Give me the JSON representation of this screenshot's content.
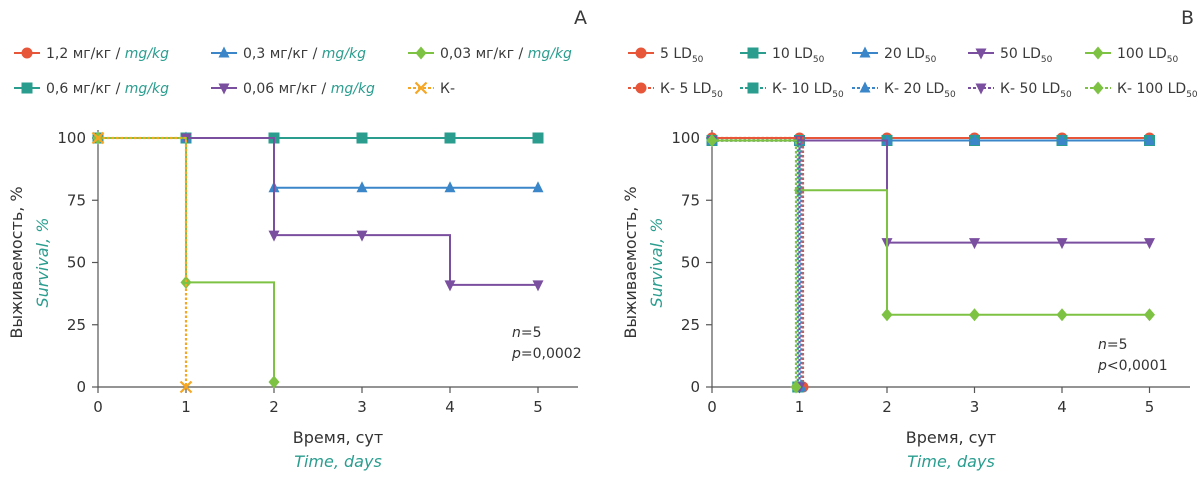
{
  "chart_data": [
    {
      "panel": "A",
      "type": "line",
      "xlabel": "Время, сут",
      "xlabel_en": "Time, days",
      "ylabel": "Выживаемость, %",
      "ylabel_en": "Survival, %",
      "xlim": [
        0,
        5.5
      ],
      "ylim": [
        0,
        100
      ],
      "x_ticks": [
        "0",
        "1",
        "2",
        "3",
        "4",
        "5"
      ],
      "y_ticks": [
        "0",
        "25",
        "50",
        "75",
        "100"
      ],
      "annotation": [
        "n=5",
        "p=0,0002"
      ],
      "legend": "top",
      "series": [
        {
          "name": "1,2 мг/кг",
          "name_en": "mg/kg",
          "color": "#e8563a",
          "marker": "circle",
          "dash": false,
          "points": [
            [
              0,
              100
            ],
            [
              1,
              100
            ],
            [
              2,
              100
            ],
            [
              3,
              100
            ],
            [
              4,
              100
            ],
            [
              5,
              100
            ]
          ]
        },
        {
          "name": "0,6 мг/кг",
          "name_en": "mg/kg",
          "color": "#2a9d8f",
          "marker": "square",
          "dash": false,
          "points": [
            [
              0,
              100
            ],
            [
              1,
              100
            ],
            [
              2,
              100
            ],
            [
              3,
              100
            ],
            [
              4,
              100
            ],
            [
              5,
              100
            ]
          ]
        },
        {
          "name": "0,3 мг/кг",
          "name_en": "mg/kg",
          "color": "#3a86c8",
          "marker": "triangle",
          "dash": false,
          "points": [
            [
              0,
              100
            ],
            [
              1,
              100
            ],
            [
              2,
              100
            ],
            [
              2,
              80
            ],
            [
              3,
              80
            ],
            [
              4,
              80
            ],
            [
              5,
              80
            ]
          ]
        },
        {
          "name": "0,06 мг/кг",
          "name_en": "mg/kg",
          "color": "#7b4fa0",
          "marker": "triangle-down",
          "dash": false,
          "points": [
            [
              0,
              100
            ],
            [
              1,
              100
            ],
            [
              2,
              100
            ],
            [
              2,
              61
            ],
            [
              3,
              61
            ],
            [
              4,
              61
            ],
            [
              4,
              41
            ],
            [
              5,
              41
            ]
          ]
        },
        {
          "name": "0,03 мг/кг",
          "name_en": "mg/kg",
          "color": "#7dc242",
          "marker": "diamond",
          "dash": false,
          "points": [
            [
              0,
              100
            ],
            [
              1,
              100
            ],
            [
              1,
              42
            ],
            [
              2,
              42
            ],
            [
              2,
              2
            ]
          ]
        },
        {
          "name": "К-",
          "name_en": "",
          "color": "#f5a623",
          "marker": "x",
          "dash": true,
          "points": [
            [
              0,
              100
            ],
            [
              1,
              100
            ],
            [
              1,
              0
            ]
          ]
        }
      ]
    },
    {
      "panel": "B",
      "type": "line",
      "xlabel": "Время, сут",
      "xlabel_en": "Time, days",
      "ylabel": "Выживаемость, %",
      "ylabel_en": "Survival, %",
      "xlim": [
        0,
        5.5
      ],
      "ylim": [
        0,
        100
      ],
      "x_ticks": [
        "0",
        "1",
        "2",
        "3",
        "4",
        "5"
      ],
      "y_ticks": [
        "0",
        "25",
        "50",
        "75",
        "100"
      ],
      "annotation": [
        "n=5",
        "p<0,0001"
      ],
      "legend": "top",
      "series": [
        {
          "name": "5 LD",
          "sub": "50",
          "color": "#e8563a",
          "marker": "circle",
          "dash": false,
          "points": [
            [
              0,
              100
            ],
            [
              1,
              100
            ],
            [
              2,
              100
            ],
            [
              3,
              100
            ],
            [
              4,
              100
            ],
            [
              5,
              100
            ]
          ]
        },
        {
          "name": "10 LD",
          "sub": "50",
          "color": "#2a9d8f",
          "marker": "square",
          "dash": false,
          "points": [
            [
              0,
              99
            ],
            [
              1,
              99
            ],
            [
              2,
              99
            ],
            [
              3,
              99
            ],
            [
              4,
              99
            ],
            [
              5,
              99
            ]
          ]
        },
        {
          "name": "20 LD",
          "sub": "50",
          "color": "#3a86c8",
          "marker": "triangle",
          "dash": false,
          "points": [
            [
              0,
              99
            ],
            [
              1,
              99
            ],
            [
              2,
              99
            ],
            [
              3,
              99
            ],
            [
              4,
              99
            ],
            [
              5,
              99
            ]
          ]
        },
        {
          "name": "50 LD",
          "sub": "50",
          "color": "#7b4fa0",
          "marker": "triangle-down",
          "dash": false,
          "points": [
            [
              0,
              99
            ],
            [
              1,
              99
            ],
            [
              2,
              99
            ],
            [
              2,
              58
            ],
            [
              3,
              58
            ],
            [
              4,
              58
            ],
            [
              5,
              58
            ]
          ]
        },
        {
          "name": "100 LD",
          "sub": "50",
          "color": "#7dc242",
          "marker": "diamond",
          "dash": false,
          "points": [
            [
              0,
              99
            ],
            [
              1,
              99
            ],
            [
              1,
              79
            ],
            [
              2,
              79
            ],
            [
              2,
              29
            ],
            [
              3,
              29
            ],
            [
              4,
              29
            ],
            [
              5,
              29
            ]
          ]
        },
        {
          "name": "К- 5 LD",
          "sub": "50",
          "color": "#e8563a",
          "marker": "circle",
          "dash": true,
          "points": [
            [
              0,
              100
            ],
            [
              1.04,
              100
            ],
            [
              1.04,
              0
            ]
          ]
        },
        {
          "name": "К- 10 LD",
          "sub": "50",
          "color": "#2a9d8f",
          "marker": "square",
          "dash": true,
          "points": [
            [
              0,
              99
            ],
            [
              0.98,
              99
            ],
            [
              0.98,
              0
            ]
          ]
        },
        {
          "name": "К- 20 LD",
          "sub": "50",
          "color": "#3a86c8",
          "marker": "triangle",
          "dash": true,
          "points": [
            [
              0,
              99
            ],
            [
              1.02,
              99
            ],
            [
              1.02,
              0
            ]
          ]
        },
        {
          "name": "К- 50 LD",
          "sub": "50",
          "color": "#7b4fa0",
          "marker": "triangle-down",
          "dash": true,
          "points": [
            [
              0,
              99
            ],
            [
              1.0,
              99
            ],
            [
              1.0,
              0
            ]
          ]
        },
        {
          "name": "К- 100 LD",
          "sub": "50",
          "color": "#7dc242",
          "marker": "diamond",
          "dash": true,
          "points": [
            [
              0,
              99
            ],
            [
              0.96,
              99
            ],
            [
              0.96,
              0
            ]
          ]
        }
      ]
    }
  ]
}
